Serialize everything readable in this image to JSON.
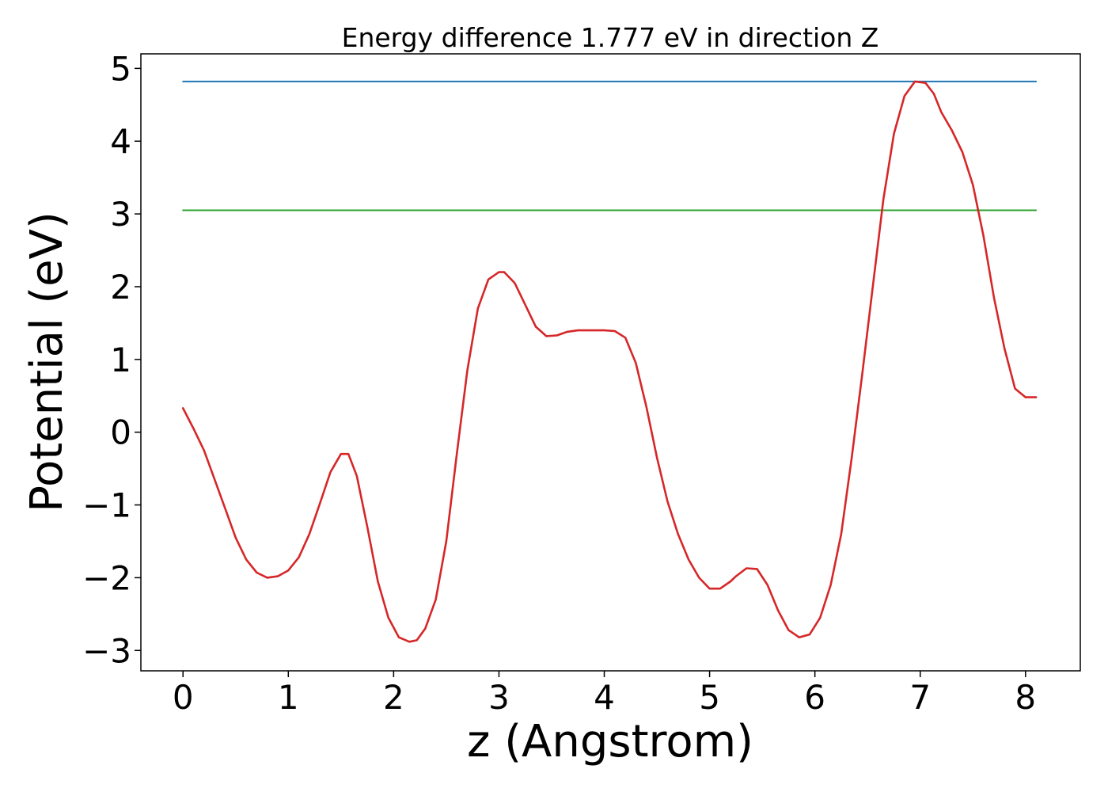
{
  "chart_data": {
    "type": "line",
    "title": "Energy difference 1.777 eV in direction Z",
    "xlabel": "z (Angstrom)",
    "ylabel": "Potential (eV)",
    "xlim": [
      -0.4,
      8.52
    ],
    "ylim": [
      -3.28,
      5.2
    ],
    "xticks": [
      0,
      1,
      2,
      3,
      4,
      5,
      6,
      7,
      8
    ],
    "xtick_labels": [
      "0",
      "1",
      "2",
      "3",
      "4",
      "5",
      "6",
      "7",
      "8"
    ],
    "yticks": [
      -3,
      -2,
      -1,
      0,
      1,
      2,
      3,
      4,
      5
    ],
    "ytick_labels": [
      "−3",
      "−2",
      "−1",
      "0",
      "1",
      "2",
      "3",
      "4",
      "5"
    ],
    "grid": false,
    "legend": "none",
    "series": [
      {
        "color": "#1f77b4",
        "x": [
          0,
          8.1
        ],
        "y": [
          4.82,
          4.82
        ]
      },
      {
        "color": "#2ca02c",
        "x": [
          0,
          8.1
        ],
        "y": [
          3.05,
          3.05
        ]
      },
      {
        "color": "#d62728",
        "x": [
          0,
          0.1,
          0.2,
          0.3,
          0.4,
          0.5,
          0.6,
          0.7,
          0.8,
          0.9,
          1.0,
          1.1,
          1.2,
          1.3,
          1.4,
          1.5,
          1.57,
          1.65,
          1.75,
          1.85,
          1.95,
          2.05,
          2.15,
          2.22,
          2.3,
          2.4,
          2.5,
          2.6,
          2.7,
          2.8,
          2.9,
          3.0,
          3.05,
          3.15,
          3.25,
          3.35,
          3.45,
          3.55,
          3.65,
          3.75,
          3.85,
          4.0,
          4.1,
          4.2,
          4.3,
          4.4,
          4.5,
          4.6,
          4.7,
          4.8,
          4.9,
          5.0,
          5.1,
          5.2,
          5.25,
          5.35,
          5.45,
          5.55,
          5.65,
          5.75,
          5.85,
          5.95,
          6.05,
          6.15,
          6.25,
          6.35,
          6.45,
          6.55,
          6.65,
          6.75,
          6.85,
          6.95,
          7.05,
          7.13,
          7.2,
          7.3,
          7.4,
          7.5,
          7.6,
          7.7,
          7.8,
          7.9,
          8.0,
          8.1
        ],
        "y": [
          0.33,
          0.05,
          -0.25,
          -0.65,
          -1.05,
          -1.45,
          -1.75,
          -1.93,
          -2.0,
          -1.98,
          -1.9,
          -1.72,
          -1.4,
          -0.98,
          -0.55,
          -0.3,
          -0.3,
          -0.6,
          -1.3,
          -2.05,
          -2.55,
          -2.82,
          -2.88,
          -2.86,
          -2.7,
          -2.3,
          -1.5,
          -0.3,
          0.85,
          1.7,
          2.1,
          2.2,
          2.2,
          2.05,
          1.75,
          1.45,
          1.32,
          1.33,
          1.38,
          1.4,
          1.4,
          1.4,
          1.39,
          1.3,
          0.95,
          0.35,
          -0.35,
          -0.95,
          -1.4,
          -1.75,
          -2.0,
          -2.15,
          -2.15,
          -2.05,
          -1.98,
          -1.87,
          -1.88,
          -2.1,
          -2.45,
          -2.72,
          -2.82,
          -2.78,
          -2.55,
          -2.1,
          -1.4,
          -0.35,
          0.8,
          2.0,
          3.2,
          4.1,
          4.62,
          4.82,
          4.8,
          4.65,
          4.4,
          4.15,
          3.85,
          3.4,
          2.7,
          1.85,
          1.15,
          0.6,
          0.48,
          0.48
        ]
      }
    ]
  }
}
